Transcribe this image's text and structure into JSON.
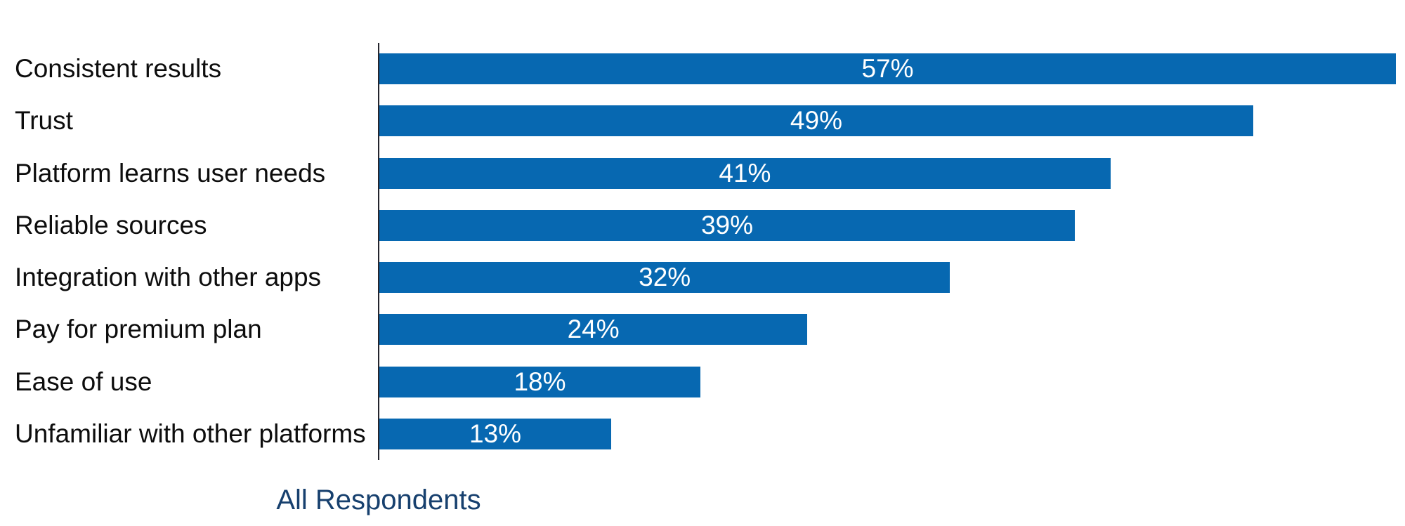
{
  "chart_data": {
    "type": "bar",
    "orientation": "horizontal",
    "title": "",
    "categories": [
      "Consistent results",
      "Trust",
      "Platform learns user needs",
      "Reliable sources",
      "Integration with other apps",
      "Pay for premium plan",
      "Ease of use",
      "Unfamiliar with other platforms"
    ],
    "values": [
      57,
      49,
      41,
      39,
      32,
      24,
      18,
      13
    ],
    "value_labels": [
      "57%",
      "49%",
      "41%",
      "39%",
      "32%",
      "24%",
      "18%",
      "13%"
    ],
    "axis_caption": "All Respondents",
    "axis_max": 57,
    "grid": false,
    "legend_position": "none",
    "bar_color": "#0768B1",
    "category_label_color": "#0d0d0d",
    "value_label_color": "#ffffff",
    "axis_line_color": "#25252d",
    "axis_caption_color": "#17406E"
  }
}
